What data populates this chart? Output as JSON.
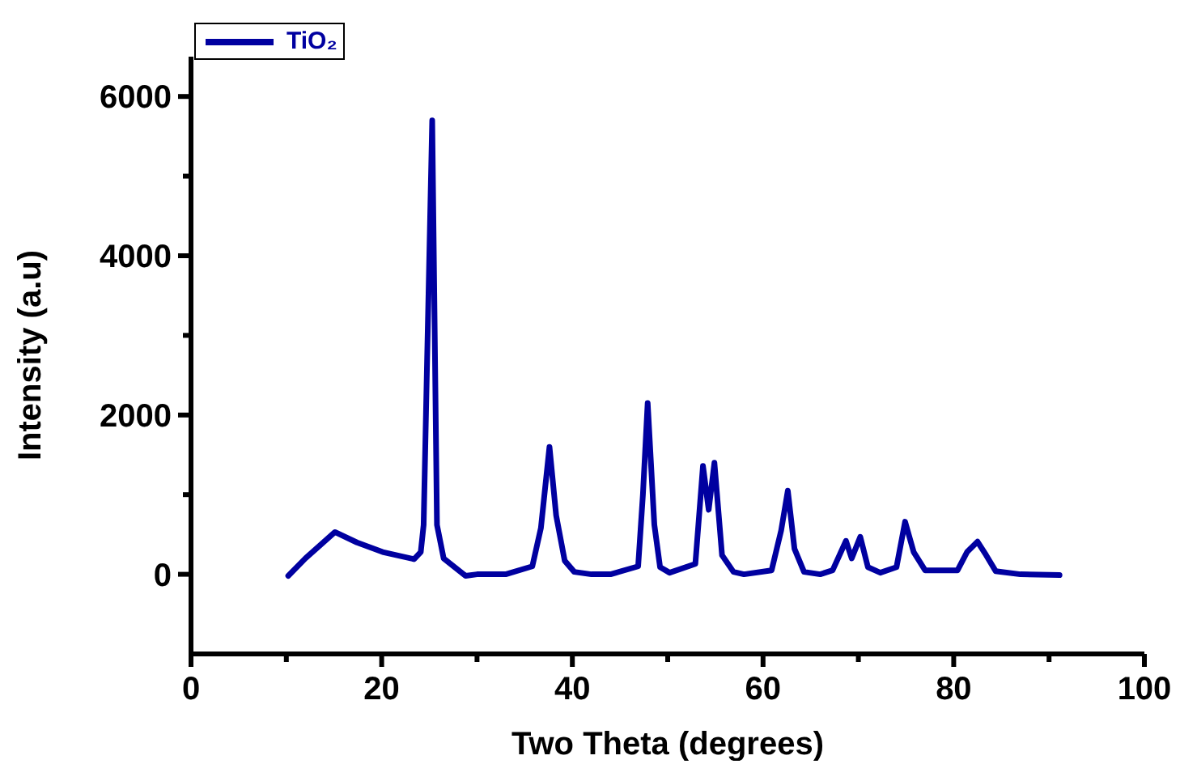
{
  "chart_data": {
    "type": "line",
    "xlabel": "Two Theta (degrees)",
    "ylabel": "Intensity (a.u)",
    "xlim": [
      0,
      100
    ],
    "xticks": [
      0,
      {
        "value": 10,
        "label": null
      },
      20,
      {
        "value": 30,
        "label": null
      },
      40,
      {
        "value": 50,
        "label": null
      },
      60,
      {
        "value": 70,
        "label": null
      },
      80,
      {
        "value": 90,
        "label": null
      },
      100
    ],
    "ylim": [
      -1000,
      6500
    ],
    "yticks": [
      0,
      {
        "value": 1000,
        "label": null
      },
      2000,
      {
        "value": 3000,
        "label": null
      },
      4000,
      {
        "value": 5000,
        "label": null
      },
      6000
    ],
    "grid": false,
    "legend": "top left",
    "marker": "none",
    "line_style": "solid",
    "series": [
      {
        "name": "TiO₂",
        "color": "#0000a0",
        "x": [
          10.2,
          12,
          15.1,
          17.4,
          20.1,
          23.4,
          24.1,
          24.4,
          25.3,
          25.8,
          26.5,
          28.8,
          30,
          33,
          35.8,
          36.7,
          37.6,
          38.3,
          39.2,
          40.2,
          42,
          44,
          46.9,
          47.4,
          47.9,
          48.6,
          49.2,
          50.2,
          52.9,
          53.7,
          54.3,
          54.9,
          55.7,
          56.9,
          58,
          60.9,
          61.9,
          62.6,
          63.3,
          64.3,
          66,
          67.3,
          68.7,
          69.3,
          70.2,
          71,
          72.3,
          74,
          74.9,
          75.8,
          77,
          80.4,
          81.4,
          82.5,
          83.4,
          84.4,
          87,
          91.1
        ],
        "values": [
          -20,
          200,
          530,
          400,
          280,
          190,
          280,
          620,
          5700,
          620,
          200,
          -20,
          0,
          0,
          100,
          580,
          1600,
          740,
          170,
          30,
          0,
          0,
          100,
          1000,
          2150,
          620,
          90,
          20,
          130,
          1360,
          810,
          1400,
          240,
          30,
          0,
          50,
          550,
          1050,
          320,
          30,
          0,
          50,
          420,
          200,
          470,
          90,
          20,
          90,
          660,
          280,
          50,
          50,
          280,
          410,
          240,
          40,
          0,
          -10
        ]
      }
    ]
  }
}
